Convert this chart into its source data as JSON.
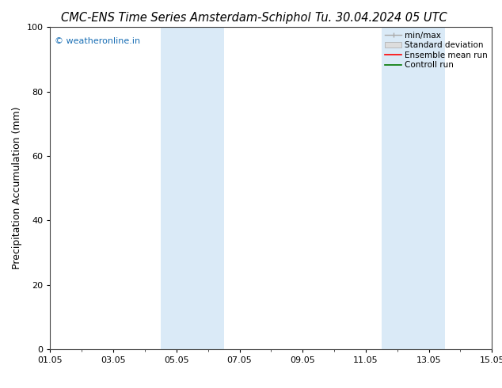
{
  "title": "CMC-ENS Time Series Amsterdam-Schiphol",
  "title2": "Tu. 30.04.2024 05 UTC",
  "ylabel": "Precipitation Accumulation (mm)",
  "watermark": "© weatheronline.in",
  "ylim": [
    0,
    100
  ],
  "yticks": [
    0,
    20,
    40,
    60,
    80,
    100
  ],
  "xtick_labels": [
    "01.05",
    "03.05",
    "05.05",
    "07.05",
    "09.05",
    "11.05",
    "13.05",
    "15.05"
  ],
  "xtick_positions": [
    0,
    2,
    4,
    6,
    8,
    10,
    12,
    14
  ],
  "x_min": 0,
  "x_max": 14,
  "shaded_bands": [
    {
      "x_start": 3.5,
      "x_end": 5.5
    },
    {
      "x_start": 10.5,
      "x_end": 12.5
    }
  ],
  "band_color": "#daeaf7",
  "legend_entries": [
    {
      "label": "min/max",
      "color": "#aaaaaa",
      "type": "line_with_caps"
    },
    {
      "label": "Standard deviation",
      "color": "#cccccc",
      "type": "filled"
    },
    {
      "label": "Ensemble mean run",
      "color": "#ff0000",
      "type": "line"
    },
    {
      "label": "Controll run",
      "color": "#007700",
      "type": "line"
    }
  ],
  "watermark_color": "#1a6fb5",
  "background_color": "#ffffff",
  "plot_bg_color": "#ffffff",
  "spine_color": "#444444",
  "title_fontsize": 10.5,
  "tick_fontsize": 8,
  "ylabel_fontsize": 9,
  "legend_fontsize": 7.5
}
